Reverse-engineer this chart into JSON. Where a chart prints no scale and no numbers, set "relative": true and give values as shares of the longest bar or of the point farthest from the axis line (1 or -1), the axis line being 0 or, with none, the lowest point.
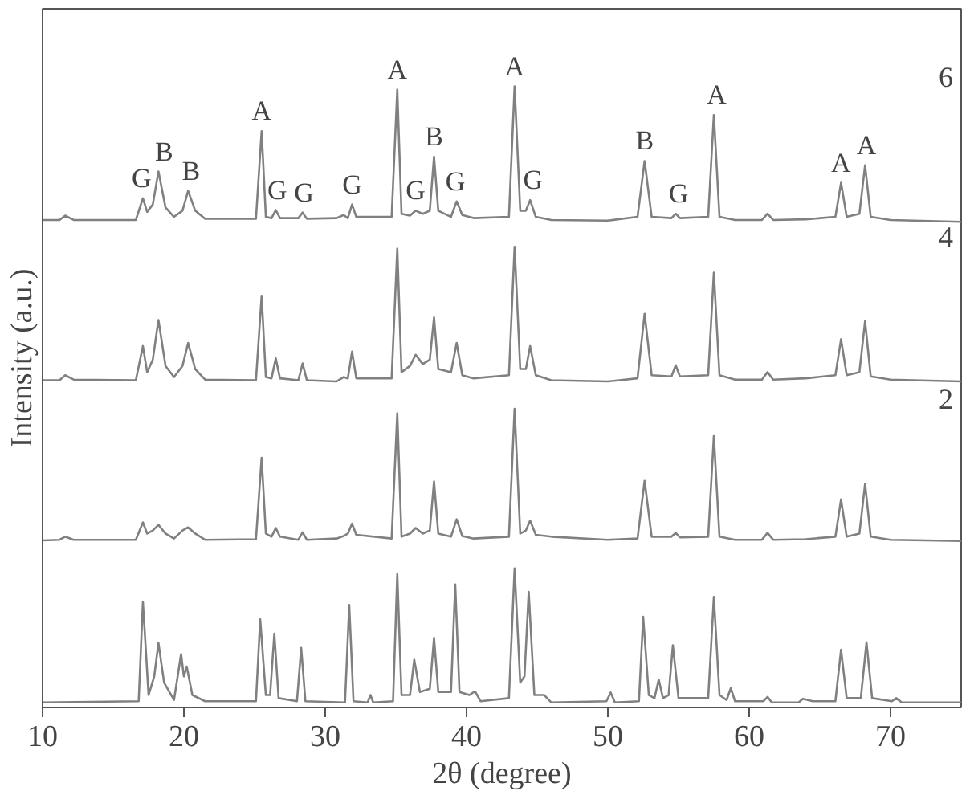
{
  "chart_data": {
    "type": "line",
    "relative": true,
    "xlabel": "2θ (degree)",
    "ylabel": "Intensity (a.u.)",
    "xlim": [
      10,
      75
    ],
    "xticks": [
      10,
      20,
      30,
      40,
      50,
      60,
      70
    ],
    "tick_labels": "x",
    "line_style": "solid",
    "x": [
      10,
      11.2,
      11.6,
      12.2,
      16.6,
      17.1,
      17.4,
      17.8,
      18.2,
      18.7,
      19.3,
      19.9,
      20.3,
      20.8,
      21.5,
      25.1,
      25.5,
      25.8,
      26.2,
      26.5,
      26.8,
      28.1,
      28.4,
      28.7,
      30.8,
      31.3,
      31.6,
      31.9,
      32.2,
      34.7,
      35.1,
      35.4,
      36.0,
      36.4,
      36.9,
      37.4,
      37.7,
      38.0,
      38.9,
      39.3,
      39.7,
      40.5,
      43.0,
      43.4,
      43.8,
      44.2,
      44.5,
      44.9,
      46.0,
      50.0,
      52.1,
      52.6,
      53.1,
      54.5,
      54.8,
      55.1,
      57.1,
      57.5,
      57.9,
      59.0,
      60.9,
      61.3,
      61.7,
      64.0,
      66.1,
      66.5,
      66.9,
      67.8,
      68.2,
      68.6,
      70.0,
      75.0
    ],
    "series": [
      {
        "name": "6",
        "color": "#808080",
        "values": [
          0.785,
          0.785,
          0.792,
          0.785,
          0.785,
          0.82,
          0.798,
          0.81,
          0.863,
          0.805,
          0.79,
          0.8,
          0.832,
          0.8,
          0.787,
          0.787,
          0.928,
          0.79,
          0.788,
          0.801,
          0.788,
          0.788,
          0.797,
          0.787,
          0.788,
          0.793,
          0.788,
          0.81,
          0.79,
          0.79,
          0.995,
          0.795,
          0.792,
          0.8,
          0.795,
          0.8,
          0.887,
          0.8,
          0.79,
          0.815,
          0.793,
          0.788,
          0.79,
          1.0,
          0.8,
          0.8,
          0.817,
          0.79,
          0.785,
          0.784,
          0.79,
          0.88,
          0.79,
          0.788,
          0.795,
          0.788,
          0.79,
          0.954,
          0.79,
          0.785,
          0.785,
          0.795,
          0.785,
          0.786,
          0.79,
          0.845,
          0.79,
          0.795,
          0.873,
          0.79,
          0.785,
          0.782
        ]
      },
      {
        "name": "4",
        "color": "#808080",
        "values": [
          0.527,
          0.527,
          0.535,
          0.528,
          0.527,
          0.582,
          0.54,
          0.56,
          0.624,
          0.55,
          0.532,
          0.55,
          0.587,
          0.545,
          0.528,
          0.527,
          0.663,
          0.532,
          0.53,
          0.562,
          0.53,
          0.527,
          0.554,
          0.527,
          0.525,
          0.532,
          0.53,
          0.573,
          0.53,
          0.53,
          0.739,
          0.54,
          0.55,
          0.568,
          0.553,
          0.56,
          0.628,
          0.545,
          0.54,
          0.587,
          0.535,
          0.53,
          0.535,
          0.742,
          0.545,
          0.545,
          0.582,
          0.535,
          0.527,
          0.525,
          0.53,
          0.634,
          0.535,
          0.533,
          0.551,
          0.533,
          0.535,
          0.7,
          0.535,
          0.528,
          0.528,
          0.54,
          0.528,
          0.53,
          0.535,
          0.593,
          0.535,
          0.54,
          0.622,
          0.533,
          0.528,
          0.525
        ]
      },
      {
        "name": "2",
        "color": "#808080",
        "values": [
          0.269,
          0.27,
          0.275,
          0.27,
          0.27,
          0.298,
          0.28,
          0.285,
          0.294,
          0.28,
          0.272,
          0.285,
          0.29,
          0.28,
          0.27,
          0.271,
          0.402,
          0.28,
          0.275,
          0.289,
          0.275,
          0.27,
          0.282,
          0.27,
          0.272,
          0.276,
          0.28,
          0.296,
          0.278,
          0.272,
          0.474,
          0.275,
          0.28,
          0.289,
          0.28,
          0.285,
          0.364,
          0.28,
          0.275,
          0.303,
          0.276,
          0.272,
          0.275,
          0.481,
          0.28,
          0.285,
          0.301,
          0.278,
          0.275,
          0.27,
          0.272,
          0.365,
          0.275,
          0.275,
          0.281,
          0.274,
          0.275,
          0.437,
          0.275,
          0.27,
          0.27,
          0.281,
          0.27,
          0.271,
          0.275,
          0.335,
          0.275,
          0.28,
          0.36,
          0.275,
          0.27,
          0.268
        ]
      },
      {
        "color": "#808080",
        "x": [
          10,
          16.8,
          17.1,
          17.5,
          17.9,
          18.2,
          18.6,
          19.3,
          19.8,
          20.0,
          20.2,
          20.6,
          21.5,
          25.1,
          25.4,
          25.8,
          26.1,
          26.4,
          26.7,
          28.0,
          28.3,
          28.6,
          31.4,
          31.7,
          32.0,
          33.0,
          33.2,
          33.4,
          34.8,
          35.1,
          35.4,
          36.0,
          36.3,
          36.7,
          37.4,
          37.7,
          38.0,
          38.9,
          39.2,
          39.5,
          40.2,
          40.6,
          41.0,
          43.0,
          43.4,
          43.8,
          44.1,
          44.4,
          44.8,
          45.5,
          46.0,
          49.9,
          50.2,
          50.5,
          52.2,
          52.5,
          52.9,
          53.3,
          53.6,
          53.9,
          54.3,
          54.6,
          55.0,
          57.1,
          57.5,
          57.9,
          58.4,
          58.7,
          59.0,
          61.0,
          61.3,
          61.6,
          63.5,
          63.8,
          64.5,
          66.1,
          66.5,
          66.9,
          67.9,
          68.3,
          68.7,
          70.1,
          70.4,
          70.8,
          75
        ],
        "values": [
          0.008,
          0.01,
          0.17,
          0.02,
          0.05,
          0.104,
          0.04,
          0.012,
          0.086,
          0.05,
          0.066,
          0.02,
          0.01,
          0.01,
          0.142,
          0.02,
          0.02,
          0.119,
          0.015,
          0.01,
          0.096,
          0.01,
          0.008,
          0.165,
          0.01,
          0.008,
          0.02,
          0.008,
          0.01,
          0.215,
          0.02,
          0.02,
          0.077,
          0.025,
          0.03,
          0.112,
          0.025,
          0.025,
          0.198,
          0.025,
          0.02,
          0.026,
          0.01,
          0.015,
          0.224,
          0.04,
          0.05,
          0.186,
          0.02,
          0.02,
          0.008,
          0.01,
          0.024,
          0.008,
          0.01,
          0.146,
          0.02,
          0.015,
          0.045,
          0.015,
          0.02,
          0.1,
          0.015,
          0.015,
          0.178,
          0.02,
          0.012,
          0.031,
          0.01,
          0.01,
          0.017,
          0.008,
          0.008,
          0.014,
          0.01,
          0.01,
          0.093,
          0.015,
          0.015,
          0.105,
          0.015,
          0.01,
          0.015,
          0.008,
          0.008
        ]
      }
    ],
    "annotations": [
      {
        "text": "G",
        "x": 17.0,
        "y": 0.82
      },
      {
        "text": "B",
        "x": 18.6,
        "y": 0.863
      },
      {
        "text": "B",
        "x": 20.5,
        "y": 0.832
      },
      {
        "text": "A",
        "x": 25.5,
        "y": 0.928
      },
      {
        "text": "G",
        "x": 26.6,
        "y": 0.801
      },
      {
        "text": "G",
        "x": 28.5,
        "y": 0.797
      },
      {
        "text": "G",
        "x": 31.9,
        "y": 0.81
      },
      {
        "text": "A",
        "x": 35.1,
        "y": 0.995
      },
      {
        "text": "G",
        "x": 36.4,
        "y": 0.8
      },
      {
        "text": "B",
        "x": 37.7,
        "y": 0.887
      },
      {
        "text": "G",
        "x": 39.2,
        "y": 0.815
      },
      {
        "text": "A",
        "x": 43.4,
        "y": 1.0
      },
      {
        "text": "G",
        "x": 44.7,
        "y": 0.817
      },
      {
        "text": "B",
        "x": 52.6,
        "y": 0.88
      },
      {
        "text": "G",
        "x": 55.0,
        "y": 0.795
      },
      {
        "text": "A",
        "x": 57.7,
        "y": 0.954
      },
      {
        "text": "A",
        "x": 66.5,
        "y": 0.845
      },
      {
        "text": "A",
        "x": 68.3,
        "y": 0.873
      }
    ]
  }
}
